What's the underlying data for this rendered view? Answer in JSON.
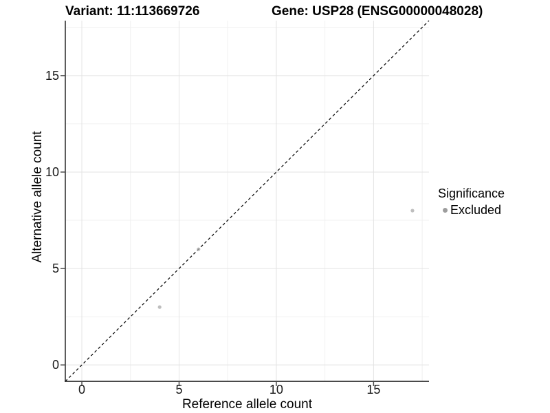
{
  "figure": {
    "title_left": "Variant: 11:113669726",
    "title_right": "Gene: USP28 (ENSG00000048028)"
  },
  "chart_data": {
    "type": "scatter",
    "title_left": "Variant: 11:113669726",
    "title_right": "Gene: USP28 (ENSG00000048028)",
    "xlabel": "Reference allele count",
    "ylabel": "Alternative allele count",
    "xlim": [
      -0.85,
      17.85
    ],
    "ylim": [
      -0.85,
      17.85
    ],
    "x_ticks": [
      0,
      5,
      10,
      15
    ],
    "x_minor_ticks": [
      2.5,
      7.5,
      12.5,
      17.5
    ],
    "y_ticks": [
      0,
      5,
      10,
      15
    ],
    "y_minor_ticks": [
      2.5,
      7.5,
      12.5,
      17.5
    ],
    "grid": "major+minor",
    "legend": {
      "title": "Significance",
      "position": "right",
      "items": [
        {
          "label": "Excluded",
          "color": "#9d9d9d"
        }
      ]
    },
    "series": [
      {
        "name": "Excluded",
        "color": "#a8a8a8",
        "points": [
          {
            "x": 4,
            "y": 3
          },
          {
            "x": 6,
            "y": 6
          },
          {
            "x": 17,
            "y": 8
          }
        ]
      }
    ],
    "reference_line": {
      "type": "identity y=x",
      "style": "dashed",
      "color": "#111111"
    }
  },
  "colors": {
    "background": "#ffffff",
    "grid_major": "#e3e3e3",
    "grid_minor": "#f0f0f0",
    "axis_line": "#4a4a4a",
    "tick_label": "#1a1a1a",
    "point": "#a8a8a8",
    "legend_key": "#9d9d9d"
  }
}
